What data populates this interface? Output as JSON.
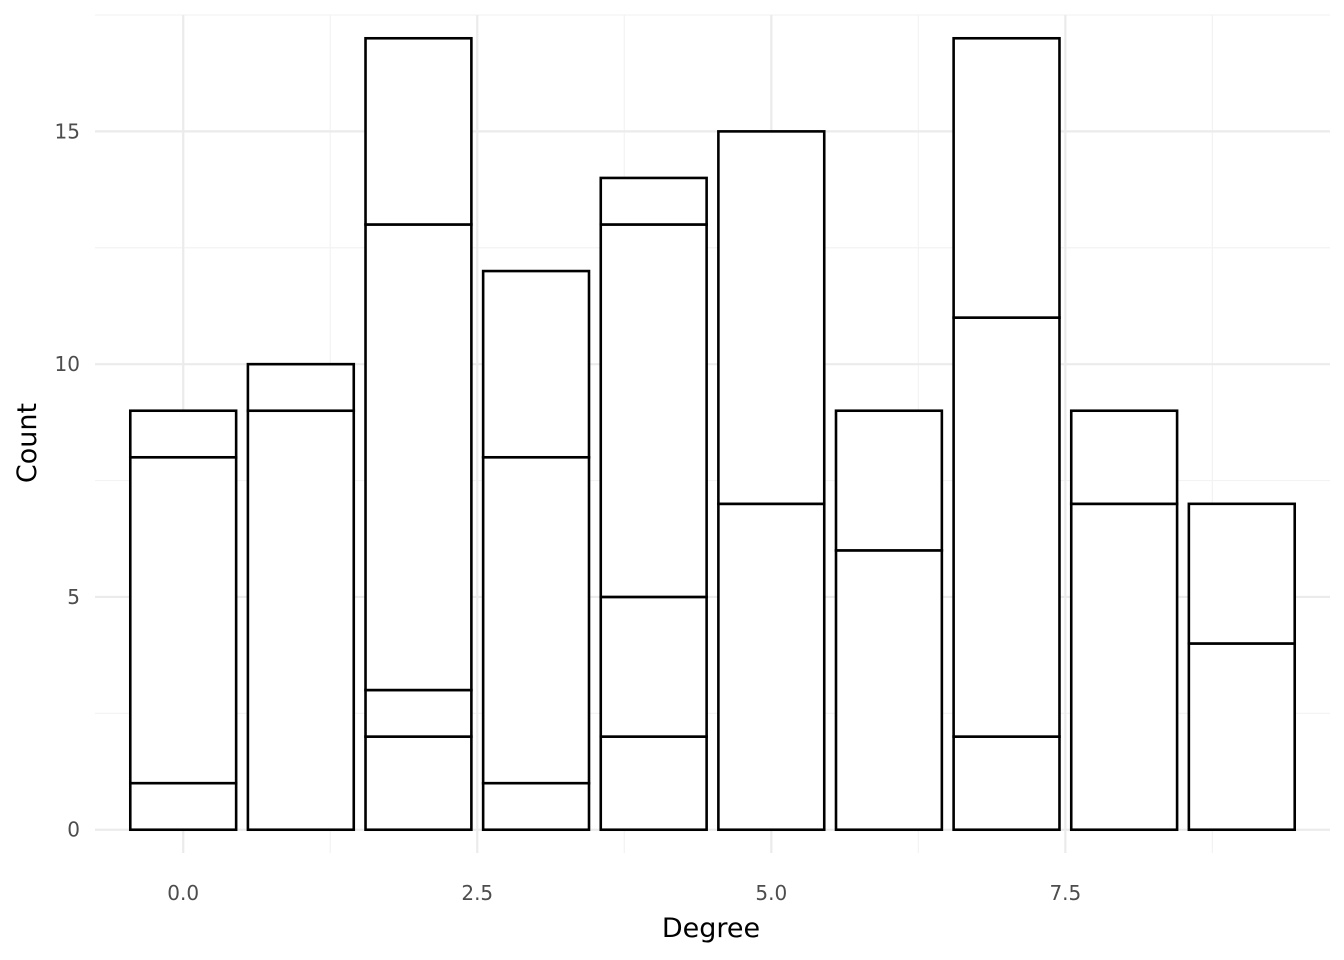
{
  "chart_data": {
    "type": "bar",
    "stacked": true,
    "xlabel": "Degree",
    "ylabel": "Count",
    "xlim": [
      -0.75,
      9.75
    ],
    "ylim": [
      -0.5,
      17.5
    ],
    "x_ticks": [
      0.0,
      2.5,
      5.0,
      7.5
    ],
    "x_tick_labels": [
      "0.0",
      "2.5",
      "5.0",
      "7.5"
    ],
    "y_ticks": [
      0,
      5,
      10,
      15
    ],
    "y_tick_labels": [
      "0",
      "5",
      "10",
      "15"
    ],
    "grid": true,
    "legend": "none",
    "bar_fill": "#ffffff",
    "bar_outline": "#000000",
    "bars": [
      {
        "x": 0,
        "boundaries": [
          0,
          1,
          8,
          9
        ]
      },
      {
        "x": 1,
        "boundaries": [
          0,
          9,
          10
        ]
      },
      {
        "x": 2,
        "boundaries": [
          0,
          2,
          3,
          13,
          17
        ]
      },
      {
        "x": 3,
        "boundaries": [
          0,
          1,
          8,
          12
        ]
      },
      {
        "x": 4,
        "boundaries": [
          0,
          2,
          5,
          13,
          14
        ]
      },
      {
        "x": 5,
        "boundaries": [
          0,
          7,
          15
        ]
      },
      {
        "x": 6,
        "boundaries": [
          0,
          6,
          9
        ]
      },
      {
        "x": 7,
        "boundaries": [
          0,
          2,
          11,
          17
        ]
      },
      {
        "x": 8,
        "boundaries": [
          0,
          7,
          9
        ]
      },
      {
        "x": 9,
        "boundaries": [
          0,
          4,
          7
        ]
      }
    ]
  }
}
